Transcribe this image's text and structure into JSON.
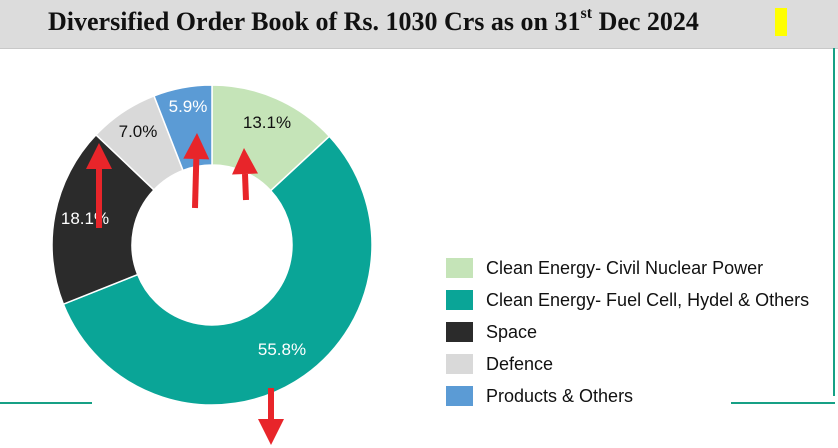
{
  "header": {
    "title_main": "Diversified Order Book of Rs. 1030 Crs as on 31",
    "title_sup": "st",
    "title_end": " Dec 2024"
  },
  "colors": {
    "header_bg": "#dcdcdc",
    "frame": "#16a085",
    "arrow": "#e8252a",
    "highlight": "#ffff00"
  },
  "chart_data": {
    "type": "donut",
    "title": "Diversified Order Book of Rs. 1030 Crs as on 31st Dec 2024",
    "legend_position": "right",
    "slices": [
      {
        "name": "Clean Energy- Civil Nuclear Power",
        "value": 13.1,
        "label": "13.1%",
        "color": "#c5e4b8",
        "label_color": "#111111"
      },
      {
        "name": "Clean Energy- Fuel Cell, Hydel & Others",
        "value": 55.8,
        "label": "55.8%",
        "color": "#0aa597",
        "label_color": "#ffffff"
      },
      {
        "name": "Space",
        "value": 18.1,
        "label": "18.1%",
        "color": "#2b2b2b",
        "label_color": "#ffffff"
      },
      {
        "name": "Defence",
        "value": 7.0,
        "label": "7.0%",
        "color": "#d9d9d9",
        "label_color": "#111111"
      },
      {
        "name": "Products & Others",
        "value": 5.9,
        "label": "5.9%",
        "color": "#5b9bd5",
        "label_color": "#ffffff"
      }
    ]
  }
}
